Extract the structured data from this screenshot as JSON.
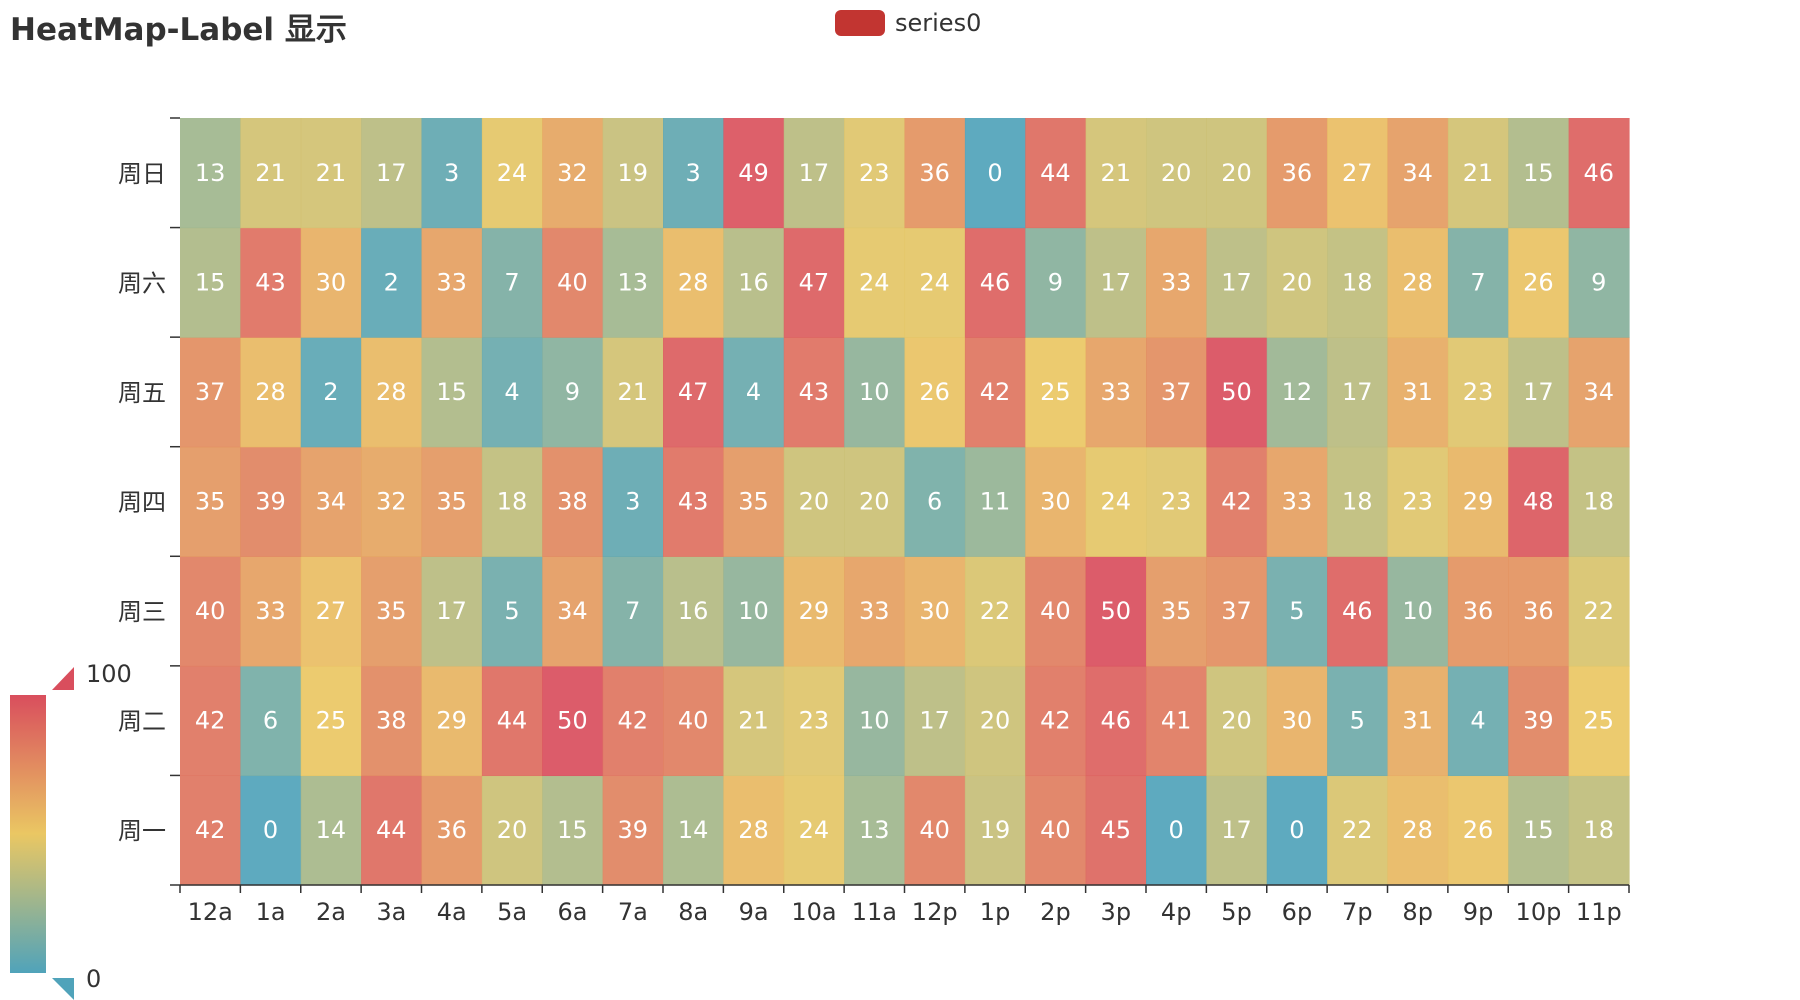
{
  "title": "HeatMap-Label 显示",
  "legend": {
    "items": [
      {
        "name": "series0",
        "color": "#c23531"
      }
    ]
  },
  "visual_map": {
    "min": 0,
    "max": 100,
    "max_label": "100",
    "min_label": "0",
    "colors": [
      "#50a3ba",
      "#eac763",
      "#d94e5d"
    ]
  },
  "chart_data": {
    "type": "heatmap",
    "title": "HeatMap-Label 显示",
    "series_name": "series0",
    "x_categories": [
      "12a",
      "1a",
      "2a",
      "3a",
      "4a",
      "5a",
      "6a",
      "7a",
      "8a",
      "9a",
      "10a",
      "11a",
      "12p",
      "1p",
      "2p",
      "3p",
      "4p",
      "5p",
      "6p",
      "7p",
      "8p",
      "9p",
      "10p",
      "11p"
    ],
    "y_categories": [
      "周一",
      "周二",
      "周三",
      "周四",
      "周五",
      "周六",
      "周日"
    ],
    "values": [
      [
        42,
        0,
        14,
        44,
        36,
        20,
        15,
        39,
        14,
        28,
        24,
        13,
        40,
        19,
        40,
        45,
        0,
        17,
        0,
        22,
        28,
        26,
        15,
        18
      ],
      [
        42,
        6,
        25,
        38,
        29,
        44,
        50,
        42,
        40,
        21,
        23,
        10,
        17,
        20,
        42,
        46,
        41,
        20,
        30,
        5,
        31,
        4,
        39,
        25
      ],
      [
        40,
        33,
        27,
        35,
        17,
        5,
        34,
        7,
        16,
        10,
        29,
        33,
        30,
        22,
        40,
        50,
        35,
        37,
        5,
        46,
        10,
        36,
        36,
        22
      ],
      [
        35,
        39,
        34,
        32,
        35,
        18,
        38,
        3,
        43,
        35,
        20,
        20,
        6,
        11,
        30,
        24,
        23,
        42,
        33,
        18,
        23,
        29,
        48,
        18
      ],
      [
        37,
        28,
        2,
        28,
        15,
        4,
        9,
        21,
        47,
        4,
        43,
        10,
        26,
        42,
        25,
        33,
        37,
        50,
        12,
        17,
        31,
        23,
        17,
        34
      ],
      [
        15,
        43,
        30,
        2,
        33,
        7,
        40,
        13,
        28,
        16,
        47,
        24,
        24,
        46,
        9,
        17,
        33,
        17,
        20,
        18,
        28,
        7,
        26,
        9
      ],
      [
        13,
        21,
        21,
        17,
        3,
        24,
        32,
        19,
        3,
        49,
        17,
        23,
        36,
        0,
        44,
        21,
        20,
        20,
        36,
        27,
        34,
        21,
        15,
        46
      ]
    ],
    "color_scale_min": 0,
    "color_scale_max": 50,
    "show_labels": true
  }
}
